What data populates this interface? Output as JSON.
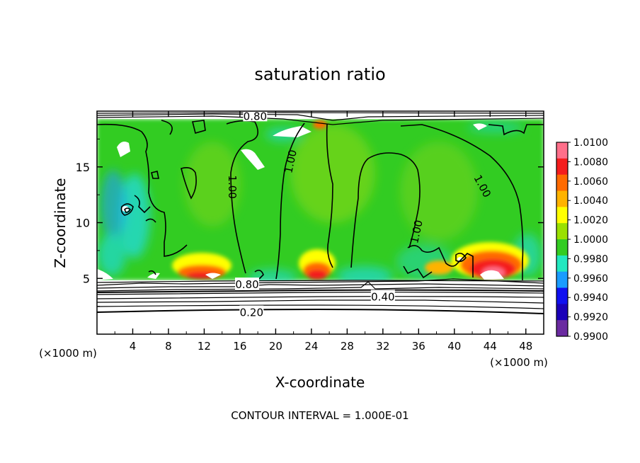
{
  "chart_data": {
    "type": "heatmap",
    "title": "saturation ratio",
    "xlabel": "X-coordinate",
    "ylabel": "Z-coordinate",
    "x_unit_label": "(×1000 m)",
    "y_unit_label": "(×1000 m)",
    "xlim": [
      0,
      50
    ],
    "ylim": [
      0,
      20
    ],
    "x_ticks": [
      4,
      8,
      12,
      16,
      20,
      24,
      28,
      32,
      36,
      40,
      44,
      48
    ],
    "y_ticks": [
      5,
      10,
      15
    ],
    "footer": "CONTOUR INTERVAL = 1.000E-01",
    "colorbar": {
      "min": 0.99,
      "max": 1.01,
      "labels": [
        "1.0100",
        "1.0080",
        "1.0060",
        "1.0040",
        "1.0020",
        "1.0000",
        "0.9980",
        "0.9960",
        "0.9940",
        "0.9920",
        "0.9900"
      ],
      "colors": [
        "#ff6f8a",
        "#f41d1d",
        "#ff6a00",
        "#ffb300",
        "#ffff00",
        "#9ae000",
        "#33cc22",
        "#22e8c0",
        "#1a9cff",
        "#1010f0",
        "#1a00b8",
        "#6a2aa0"
      ]
    },
    "contour_labels": [
      {
        "text": "0.80",
        "x": 17.7,
        "z": 19.6
      },
      {
        "text": "1.00",
        "x": 15.2,
        "z": 13.2
      },
      {
        "text": "1.00",
        "x": 21.6,
        "z": 15.5
      },
      {
        "text": "1.00",
        "x": 43.2,
        "z": 13.3
      },
      {
        "text": "1.00",
        "x": 35.7,
        "z": 9.2
      },
      {
        "text": "0.80",
        "x": 16.8,
        "z": 4.5
      },
      {
        "text": "0.40",
        "x": 32.0,
        "z": 3.4
      },
      {
        "text": "0.20",
        "x": 17.3,
        "z": 2.0
      }
    ]
  }
}
